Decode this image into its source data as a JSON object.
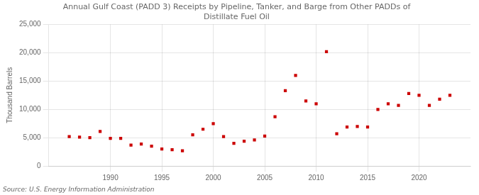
{
  "chart_data": {
    "type": "scatter",
    "title": "Annual Gulf Coast (PADD 3) Receipts by Pipeline, Tanker, and Barge from Other PADDs of\nDistillate Fuel Oil",
    "ylabel": "Thousand Barrels",
    "source": "Source: U.S. Energy Information Administration",
    "x": [
      1986,
      1987,
      1988,
      1989,
      1990,
      1991,
      1992,
      1993,
      1994,
      1995,
      1996,
      1997,
      1998,
      1999,
      2000,
      2001,
      2002,
      2003,
      2004,
      2005,
      2006,
      2007,
      2008,
      2009,
      2010,
      2011,
      2012,
      2013,
      2014,
      2015,
      2016,
      2017,
      2018,
      2019,
      2020,
      2021,
      2022,
      2023
    ],
    "values": [
      5200,
      5100,
      5000,
      6100,
      4900,
      4900,
      3700,
      3900,
      3500,
      3000,
      2900,
      2700,
      5500,
      6500,
      7500,
      5200,
      4000,
      4400,
      4600,
      5300,
      8700,
      13300,
      16000,
      11500,
      11000,
      20200,
      5700,
      6900,
      7000,
      6900,
      10000,
      11000,
      10700,
      12800,
      12500,
      10700,
      11800,
      12500
    ],
    "color": "#cc0000",
    "marker": "square",
    "xlim": [
      1984,
      2025
    ],
    "xticks": [
      1990,
      1995,
      2000,
      2005,
      2010,
      2015,
      2020
    ],
    "ylim": [
      0,
      25000
    ],
    "yticks": [
      0,
      {
        "value": 5000,
        "label": "5,000"
      },
      {
        "value": 10000,
        "label": "10,000"
      },
      {
        "value": 15000,
        "label": "15,000"
      },
      {
        "value": 20000,
        "label": "20,000"
      },
      {
        "value": 25000,
        "label": "25,000"
      }
    ],
    "grid": true
  }
}
